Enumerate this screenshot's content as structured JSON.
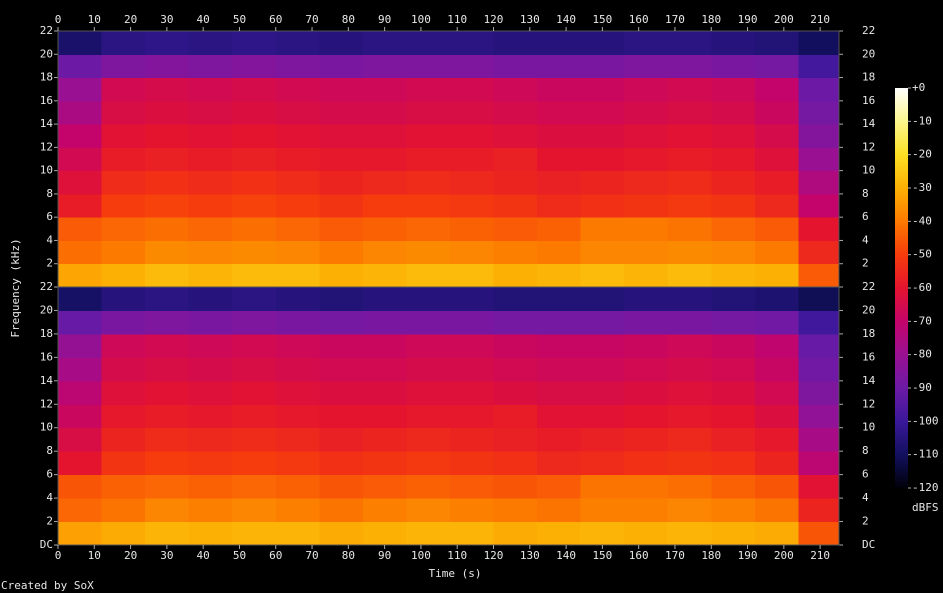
{
  "chart_data": {
    "type": "heatmap",
    "x_label": "Time (s)",
    "y_label": "Frequency (kHz)",
    "colorbar_label": "dBFS",
    "footer": "Created by SoX",
    "xlim": [
      0,
      215.2
    ],
    "xticks": [
      0,
      10,
      20,
      30,
      40,
      50,
      60,
      70,
      80,
      90,
      100,
      110,
      120,
      130,
      140,
      150,
      160,
      170,
      180,
      190,
      200,
      210
    ],
    "zlim": [
      -120,
      0
    ],
    "zticks": [
      {
        "value": 0,
        "label": "+0"
      },
      -10,
      -20,
      -30,
      -40,
      -50,
      -60,
      -70,
      -80,
      -90,
      -100,
      -110,
      -120
    ],
    "colorscale": [
      "#000008",
      "#12105e",
      "#3a189a",
      "#6c1aa6",
      "#9a1092",
      "#c4046a",
      "#e4142e",
      "#f63c0c",
      "#fc7a00",
      "#fcb004",
      "#fce024",
      "#fcf68c",
      "#ffffff"
    ],
    "x": [
      0,
      12,
      24,
      36,
      48,
      60,
      72,
      84,
      96,
      108,
      120,
      132,
      144,
      156,
      168,
      180,
      192,
      204,
      215.2
    ],
    "y": [
      0,
      2,
      4,
      6,
      8,
      10,
      12,
      14,
      16,
      18,
      20,
      22
    ],
    "channels": [
      {
        "ylim": [
          0,
          22
        ],
        "yticks": [
          2,
          4,
          6,
          8,
          10,
          12,
          14,
          16,
          18,
          20,
          22
        ],
        "values": [
          [
            -32,
            -30,
            -28,
            -29,
            -28,
            -28,
            -30,
            -29,
            -28,
            -28,
            -30,
            -29,
            -28,
            -29,
            -28,
            -29,
            -30,
            -45
          ],
          [
            -42,
            -40,
            -37,
            -38,
            -37,
            -38,
            -40,
            -38,
            -37,
            -38,
            -39,
            -40,
            -38,
            -38,
            -37,
            -38,
            -40,
            -55
          ],
          [
            -45,
            -43,
            -42,
            -43,
            -42,
            -43,
            -45,
            -44,
            -43,
            -44,
            -45,
            -44,
            -40,
            -40,
            -41,
            -43,
            -45,
            -60
          ],
          [
            -58,
            -50,
            -49,
            -50,
            -49,
            -50,
            -52,
            -50,
            -50,
            -51,
            -52,
            -54,
            -53,
            -52,
            -51,
            -52,
            -55,
            -70
          ],
          [
            -62,
            -54,
            -53,
            -54,
            -53,
            -54,
            -56,
            -55,
            -54,
            -55,
            -56,
            -57,
            -56,
            -55,
            -54,
            -56,
            -58,
            -75
          ],
          [
            -66,
            -58,
            -57,
            -58,
            -57,
            -58,
            -59,
            -59,
            -58,
            -58,
            -57,
            -60,
            -60,
            -59,
            -58,
            -59,
            -62,
            -80
          ],
          [
            -70,
            -61,
            -60,
            -61,
            -60,
            -61,
            -62,
            -62,
            -61,
            -61,
            -62,
            -63,
            -63,
            -62,
            -61,
            -62,
            -65,
            -85
          ],
          [
            -76,
            -64,
            -63,
            -64,
            -63,
            -64,
            -65,
            -65,
            -64,
            -64,
            -65,
            -66,
            -66,
            -65,
            -64,
            -65,
            -68,
            -88
          ],
          [
            -80,
            -66,
            -65,
            -66,
            -65,
            -66,
            -67,
            -67,
            -66,
            -66,
            -67,
            -68,
            -68,
            -67,
            -66,
            -67,
            -70,
            -90
          ],
          [
            -90,
            -86,
            -85,
            -86,
            -85,
            -86,
            -87,
            -86,
            -86,
            -86,
            -87,
            -87,
            -87,
            -86,
            -86,
            -87,
            -88,
            -98
          ],
          [
            -108,
            -104,
            -103,
            -104,
            -103,
            -104,
            -105,
            -104,
            -104,
            -104,
            -105,
            -105,
            -105,
            -104,
            -104,
            -105,
            -106,
            -110
          ]
        ]
      },
      {
        "ylim": [
          0,
          22
        ],
        "yticks": [
          {
            "value": 0,
            "label": "DC"
          },
          2,
          4,
          6,
          8,
          10,
          12,
          14,
          16,
          18,
          20,
          22
        ],
        "values": [
          [
            -33,
            -31,
            -29,
            -30,
            -29,
            -29,
            -31,
            -30,
            -29,
            -29,
            -31,
            -30,
            -29,
            -30,
            -29,
            -30,
            -31,
            -46
          ],
          [
            -43,
            -41,
            -38,
            -39,
            -38,
            -39,
            -41,
            -39,
            -38,
            -39,
            -40,
            -41,
            -39,
            -39,
            -38,
            -39,
            -41,
            -56
          ],
          [
            -46,
            -44,
            -43,
            -44,
            -43,
            -44,
            -46,
            -45,
            -44,
            -45,
            -46,
            -45,
            -41,
            -41,
            -42,
            -44,
            -46,
            -61
          ],
          [
            -60,
            -52,
            -50,
            -51,
            -50,
            -51,
            -53,
            -52,
            -51,
            -52,
            -53,
            -55,
            -54,
            -53,
            -52,
            -53,
            -56,
            -72
          ],
          [
            -64,
            -56,
            -54,
            -55,
            -54,
            -55,
            -57,
            -56,
            -55,
            -56,
            -57,
            -58,
            -57,
            -56,
            -55,
            -57,
            -59,
            -77
          ],
          [
            -68,
            -59,
            -58,
            -59,
            -58,
            -59,
            -60,
            -60,
            -59,
            -59,
            -58,
            -61,
            -61,
            -60,
            -59,
            -60,
            -63,
            -82
          ],
          [
            -72,
            -62,
            -61,
            -62,
            -61,
            -62,
            -63,
            -63,
            -62,
            -62,
            -63,
            -64,
            -64,
            -63,
            -62,
            -63,
            -66,
            -86
          ],
          [
            -77,
            -65,
            -64,
            -65,
            -64,
            -65,
            -66,
            -66,
            -65,
            -65,
            -66,
            -67,
            -67,
            -66,
            -65,
            -66,
            -69,
            -89
          ],
          [
            -81,
            -67,
            -66,
            -67,
            -66,
            -67,
            -68,
            -68,
            -67,
            -67,
            -68,
            -69,
            -69,
            -68,
            -67,
            -68,
            -71,
            -91
          ],
          [
            -91,
            -87,
            -86,
            -87,
            -86,
            -87,
            -88,
            -87,
            -87,
            -87,
            -88,
            -88,
            -88,
            -87,
            -87,
            -88,
            -89,
            -99
          ],
          [
            -109,
            -105,
            -104,
            -105,
            -104,
            -105,
            -106,
            -105,
            -105,
            -105,
            -106,
            -106,
            -106,
            -105,
            -105,
            -106,
            -107,
            -111
          ]
        ]
      }
    ]
  }
}
